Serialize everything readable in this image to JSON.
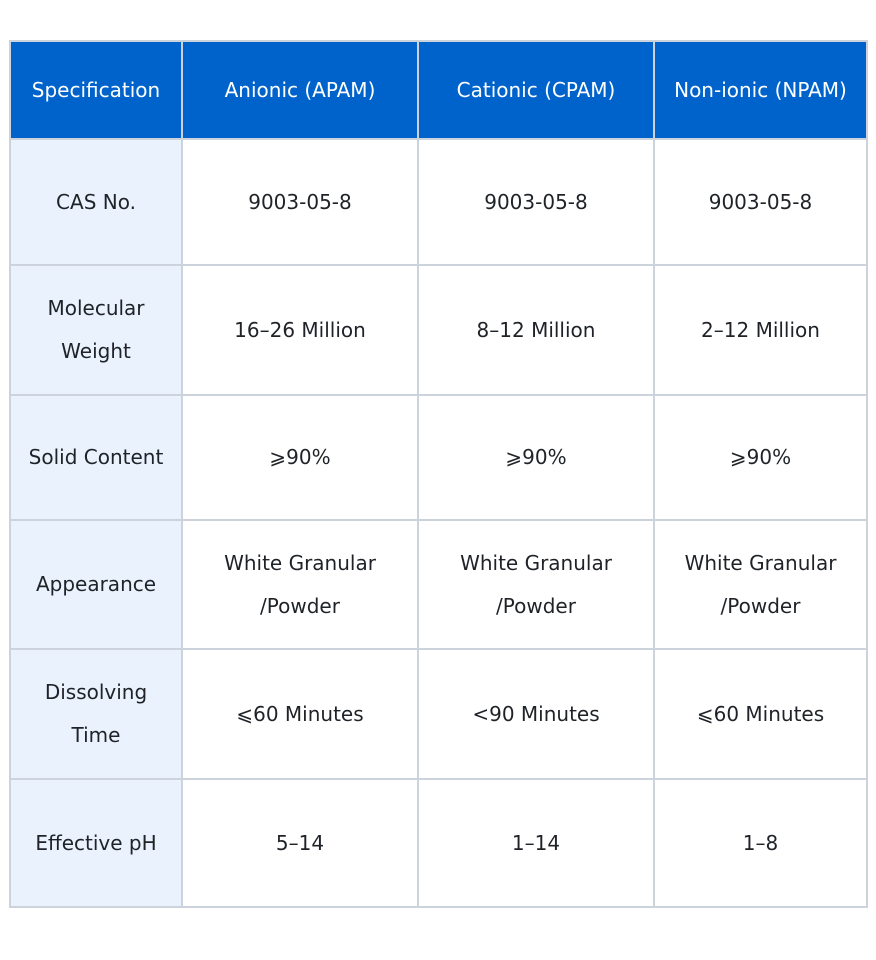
{
  "table": {
    "headers": [
      "Specification",
      "Anionic (APAM)",
      "Cationic (CPAM)",
      "Non-ionic (NPAM)"
    ],
    "rows": [
      {
        "label": [
          "CAS No."
        ],
        "values": [
          [
            "9003-05-8"
          ],
          [
            "9003-05-8"
          ],
          [
            "9003-05-8"
          ]
        ]
      },
      {
        "label": [
          "Molecular",
          "Weight"
        ],
        "values": [
          [
            "16–26 Million"
          ],
          [
            "8–12 Million"
          ],
          [
            "2–12 Million"
          ]
        ]
      },
      {
        "label": [
          "Solid Content"
        ],
        "values": [
          [
            "⩾90%"
          ],
          [
            "⩾90%"
          ],
          [
            "⩾90%"
          ]
        ]
      },
      {
        "label": [
          "Appearance"
        ],
        "values": [
          [
            "White Granular",
            "/Powder"
          ],
          [
            "White Granular",
            "/Powder"
          ],
          [
            "White Granular",
            "/Powder"
          ]
        ]
      },
      {
        "label": [
          "Dissolving",
          "Time"
        ],
        "values": [
          [
            "⩽60 Minutes"
          ],
          [
            "<90 Minutes"
          ],
          [
            "⩽60 Minutes"
          ]
        ]
      },
      {
        "label": [
          "Effective pH"
        ],
        "values": [
          [
            "5–14"
          ],
          [
            "1–14"
          ],
          [
            "1–8"
          ]
        ]
      }
    ]
  },
  "colors": {
    "header_bg": "#0063cc",
    "header_text": "#ffffff",
    "label_bg": "#e9f2fd",
    "border": "#ccd3dc",
    "body_text": "#1f2328"
  }
}
